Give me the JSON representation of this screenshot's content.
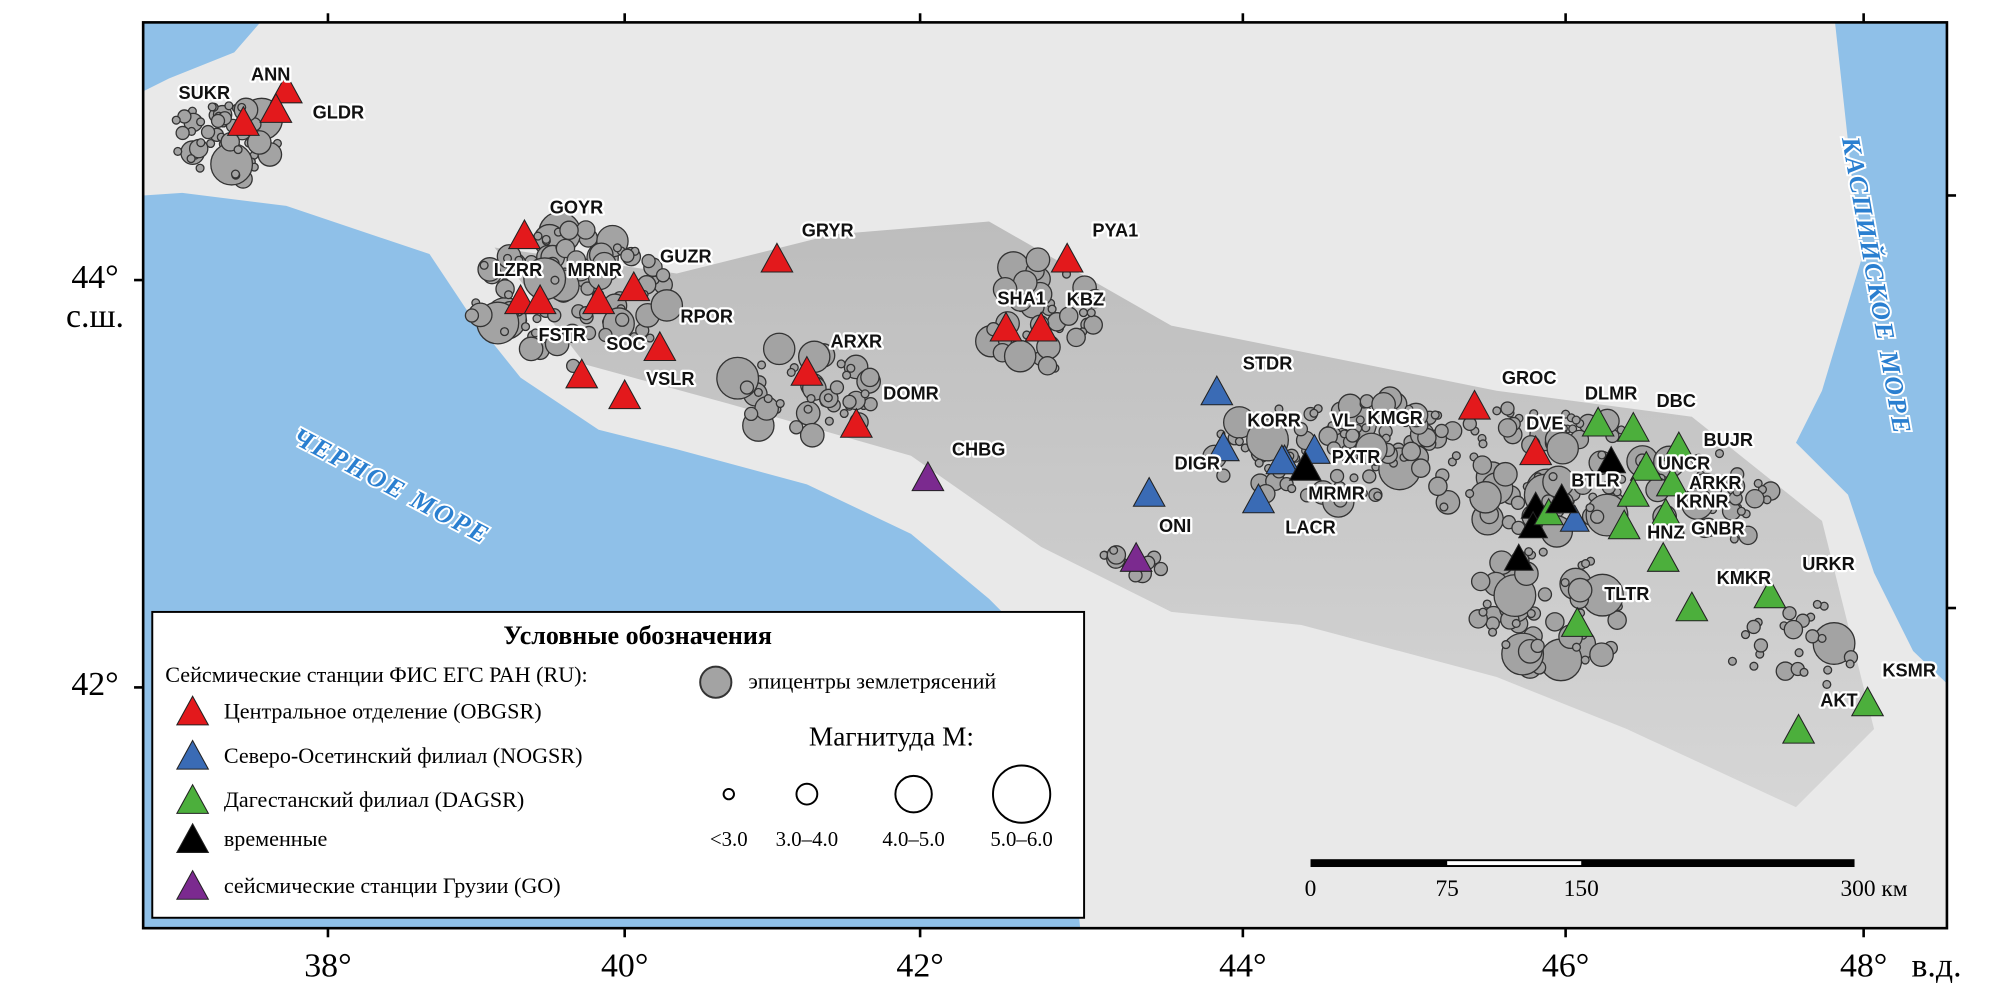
{
  "map": {
    "axes": {
      "lon_labels": [
        "38°",
        "40°",
        "42°",
        "44°",
        "46°",
        "48°"
      ],
      "lon_suffix": "в.д.",
      "lat_labels": [
        "44°",
        "42°"
      ],
      "lat_suffix": "с.ш."
    },
    "seas": [
      "ЧЕРНОЕ МОРЕ",
      "КАСПИЙСКОЕ МОРЕ"
    ],
    "stations": [
      {
        "label": "SUKR",
        "network": 0
      },
      {
        "label": "ANN",
        "network": 0
      },
      {
        "label": "GLDR",
        "network": 0
      },
      {
        "label": "GOYR",
        "network": 0
      },
      {
        "label": "LZRR",
        "network": 0
      },
      {
        "label": "MRNR",
        "network": 0
      },
      {
        "label": "GUZR",
        "network": 0
      },
      {
        "label": "GRYR",
        "network": 0
      },
      {
        "label": "RPOR",
        "network": 0
      },
      {
        "label": "FSTR",
        "network": 0
      },
      {
        "label": "SOC",
        "network": 0
      },
      {
        "label": "VSLR",
        "network": 0
      },
      {
        "label": "ARXR",
        "network": 0
      },
      {
        "label": "DOMR",
        "network": 0
      },
      {
        "label": "CHBG",
        "network": 4
      },
      {
        "label": "SHA1",
        "network": 0
      },
      {
        "label": "KBZ",
        "network": 0
      },
      {
        "label": "PYA1",
        "network": 0
      },
      {
        "label": "STDR",
        "network": 1
      },
      {
        "label": "KORR",
        "network": 1
      },
      {
        "label": "DIGR",
        "network": 1
      },
      {
        "label": "VL",
        "network": 1
      },
      {
        "label": "KMGR",
        "network": 1
      },
      {
        "label": "PXTR",
        "network": 1
      },
      {
        "label": "MRMR",
        "network": 3
      },
      {
        "label": "LACR",
        "network": 1
      },
      {
        "label": "ONI",
        "network": 4
      },
      {
        "label": "GROC",
        "network": 0
      },
      {
        "label": "DVE",
        "network": 0
      },
      {
        "label": "DLMR",
        "network": 2
      },
      {
        "label": "DBC",
        "network": 2
      },
      {
        "label": "BUJR",
        "network": 2
      },
      {
        "label": "UNCR",
        "network": 2
      },
      {
        "label": "BTLR",
        "network": 3
      },
      {
        "label": "ARKR",
        "network": 2
      },
      {
        "label": "KRNR",
        "network": 2
      },
      {
        "label": "HNZ",
        "network": 2
      },
      {
        "label": "GNBR",
        "network": 2
      },
      {
        "label": "TLTR",
        "network": 2
      },
      {
        "label": "KMKR",
        "network": 2
      },
      {
        "label": "URKR",
        "network": 2
      },
      {
        "label": "AKT",
        "network": 2
      },
      {
        "label": "KSMR",
        "network": 2
      }
    ],
    "scale_bar": [
      "0",
      "75",
      "150",
      "300 км"
    ]
  },
  "legend": {
    "title": "Условные обозначения",
    "network_heading": "Сейсмические станции ФИС ЕГС РАН (RU):",
    "networks": [
      {
        "label": "Центральное отделение (OBGSR)",
        "color": "#e3191c"
      },
      {
        "label": "Северо-Осетинский филиал (NOGSR)",
        "color": "#3a6bb5"
      },
      {
        "label": "Дагестанский филиал (DAGSR)",
        "color": "#4caf3c"
      },
      {
        "label": "временные",
        "color": "#000000"
      },
      {
        "label": "сейсмические станции Грузии (GO)",
        "color": "#7b2a8f"
      }
    ],
    "epicenters": "эпицентры землетрясений",
    "magnitude_title": "Магнитуда M:",
    "magnitude_classes": [
      "<3.0",
      "3.0–4.0",
      "4.0–5.0",
      "5.0–6.0"
    ]
  }
}
